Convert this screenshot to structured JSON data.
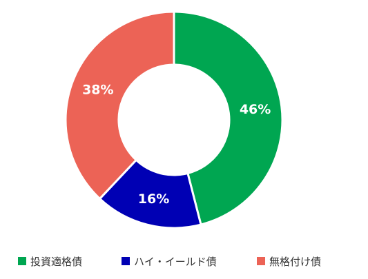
{
  "chart_data": {
    "type": "pie",
    "style": "donut",
    "categories": [
      "投資適格債",
      "ハイ・イールド債",
      "無格付け債"
    ],
    "values": [
      46,
      16,
      38
    ],
    "value_labels": [
      "46%",
      "16%",
      "38%"
    ],
    "unit": "%",
    "colors": [
      "#00a651",
      "#0000b4",
      "#ec6356"
    ],
    "legend_position": "bottom",
    "title": ""
  }
}
